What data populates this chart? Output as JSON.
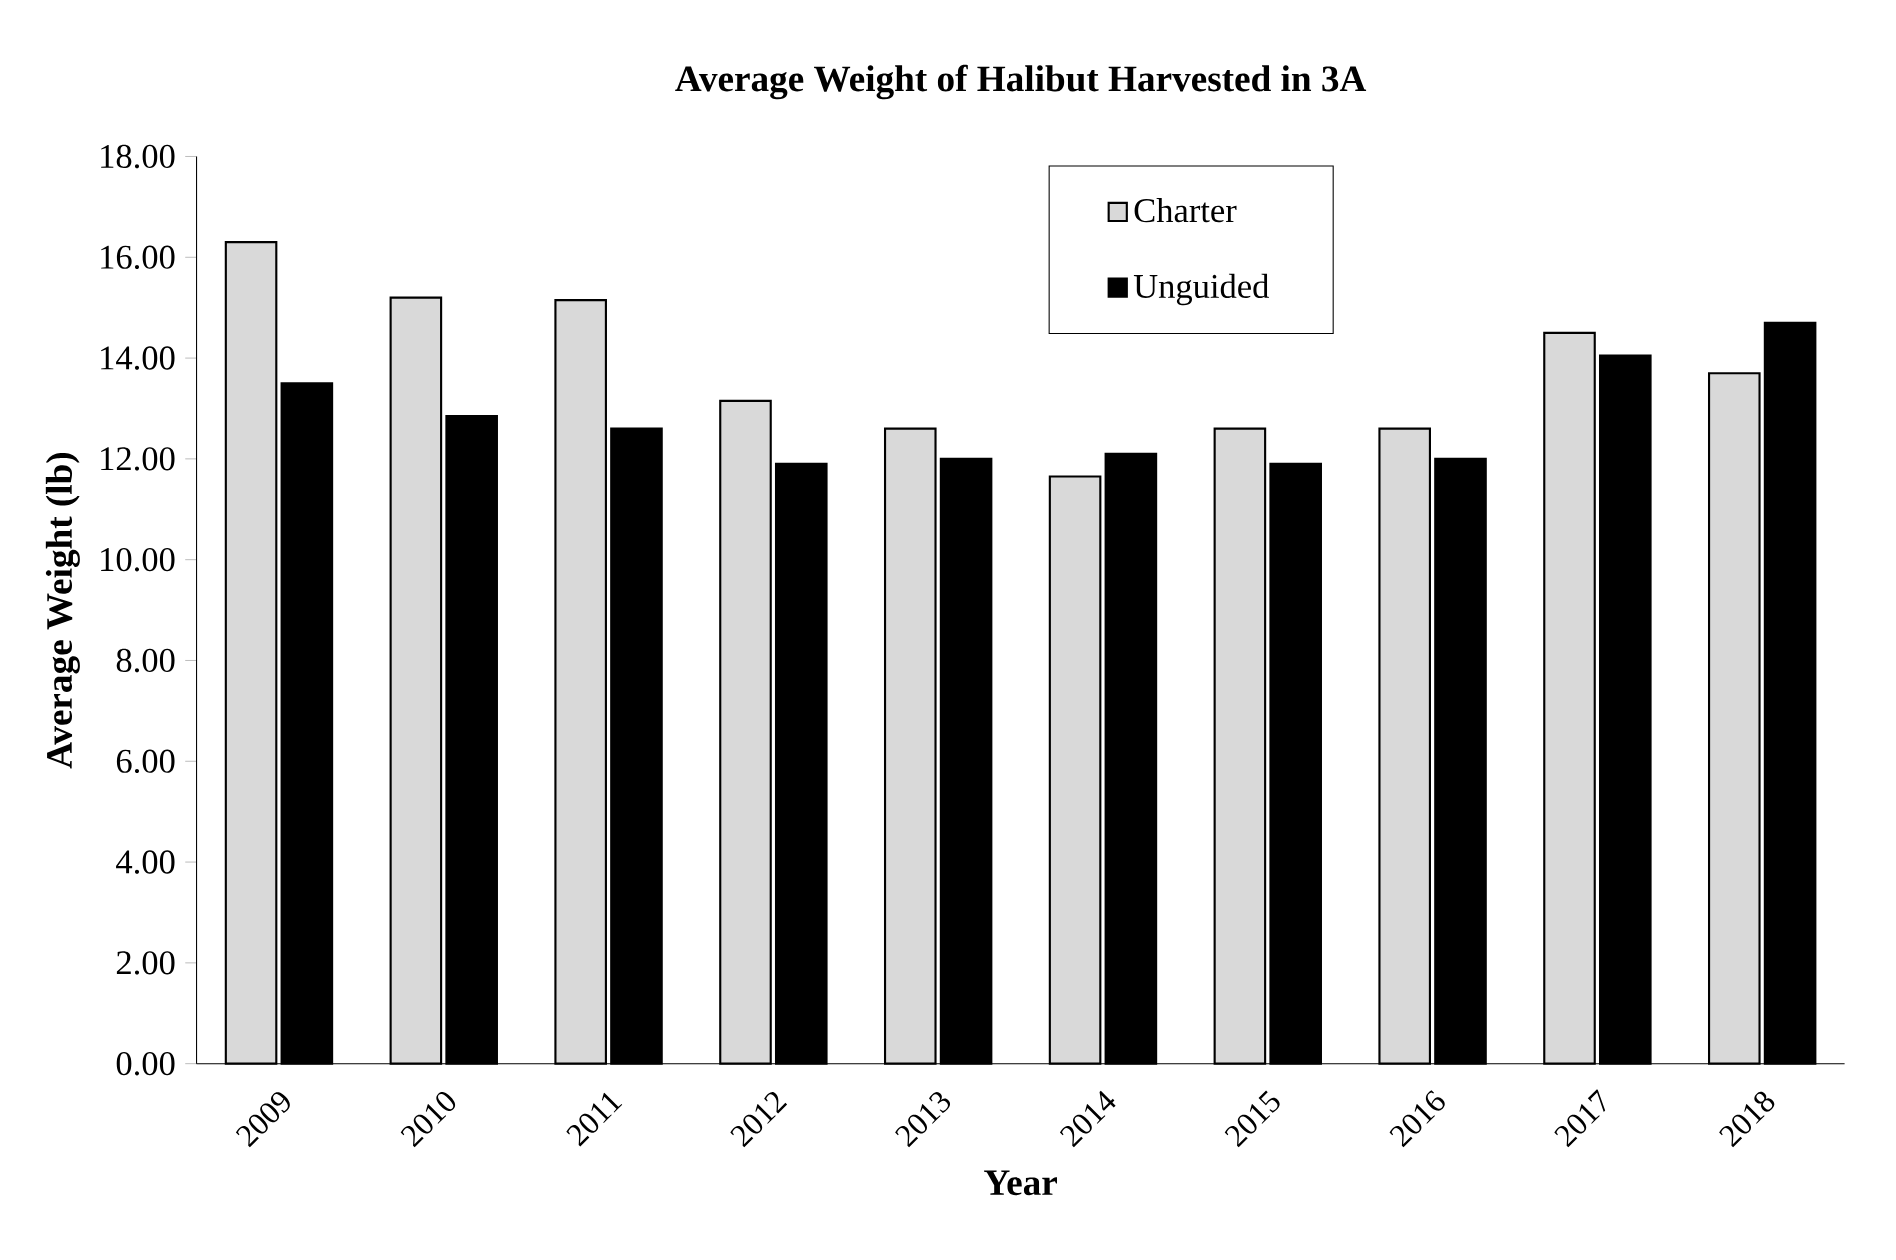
{
  "chart_data": {
    "type": "bar",
    "title": "Average Weight of Halibut  Harvested in 3A",
    "xlabel": "Year",
    "ylabel": "Average Weight (lb)",
    "categories": [
      "2009",
      "2010",
      "2011",
      "2012",
      "2013",
      "2014",
      "2015",
      "2016",
      "2017",
      "2018"
    ],
    "series": [
      {
        "name": "Charter",
        "color": "#d9d9d9",
        "values": [
          16.3,
          15.2,
          15.15,
          13.15,
          12.6,
          11.65,
          12.6,
          12.6,
          14.5,
          13.7
        ]
      },
      {
        "name": "Unguided",
        "color": "#000000",
        "values": [
          13.5,
          12.85,
          12.6,
          11.9,
          12.0,
          12.1,
          11.9,
          12.0,
          14.05,
          14.7
        ]
      }
    ],
    "ylim": [
      0,
      18
    ],
    "yticks": [
      {
        "value": 0,
        "label": "0.00"
      },
      {
        "value": 2,
        "label": "2.00"
      },
      {
        "value": 4,
        "label": "4.00"
      },
      {
        "value": 6,
        "label": "6.00"
      },
      {
        "value": 8,
        "label": "8.00"
      },
      {
        "value": 10,
        "label": "10.00"
      },
      {
        "value": 12,
        "label": "12.00"
      },
      {
        "value": 14,
        "label": "14.00"
      },
      {
        "value": 16,
        "label": "16.00"
      },
      {
        "value": 18,
        "label": "18.00"
      }
    ],
    "legend": "top right",
    "grid": false
  }
}
